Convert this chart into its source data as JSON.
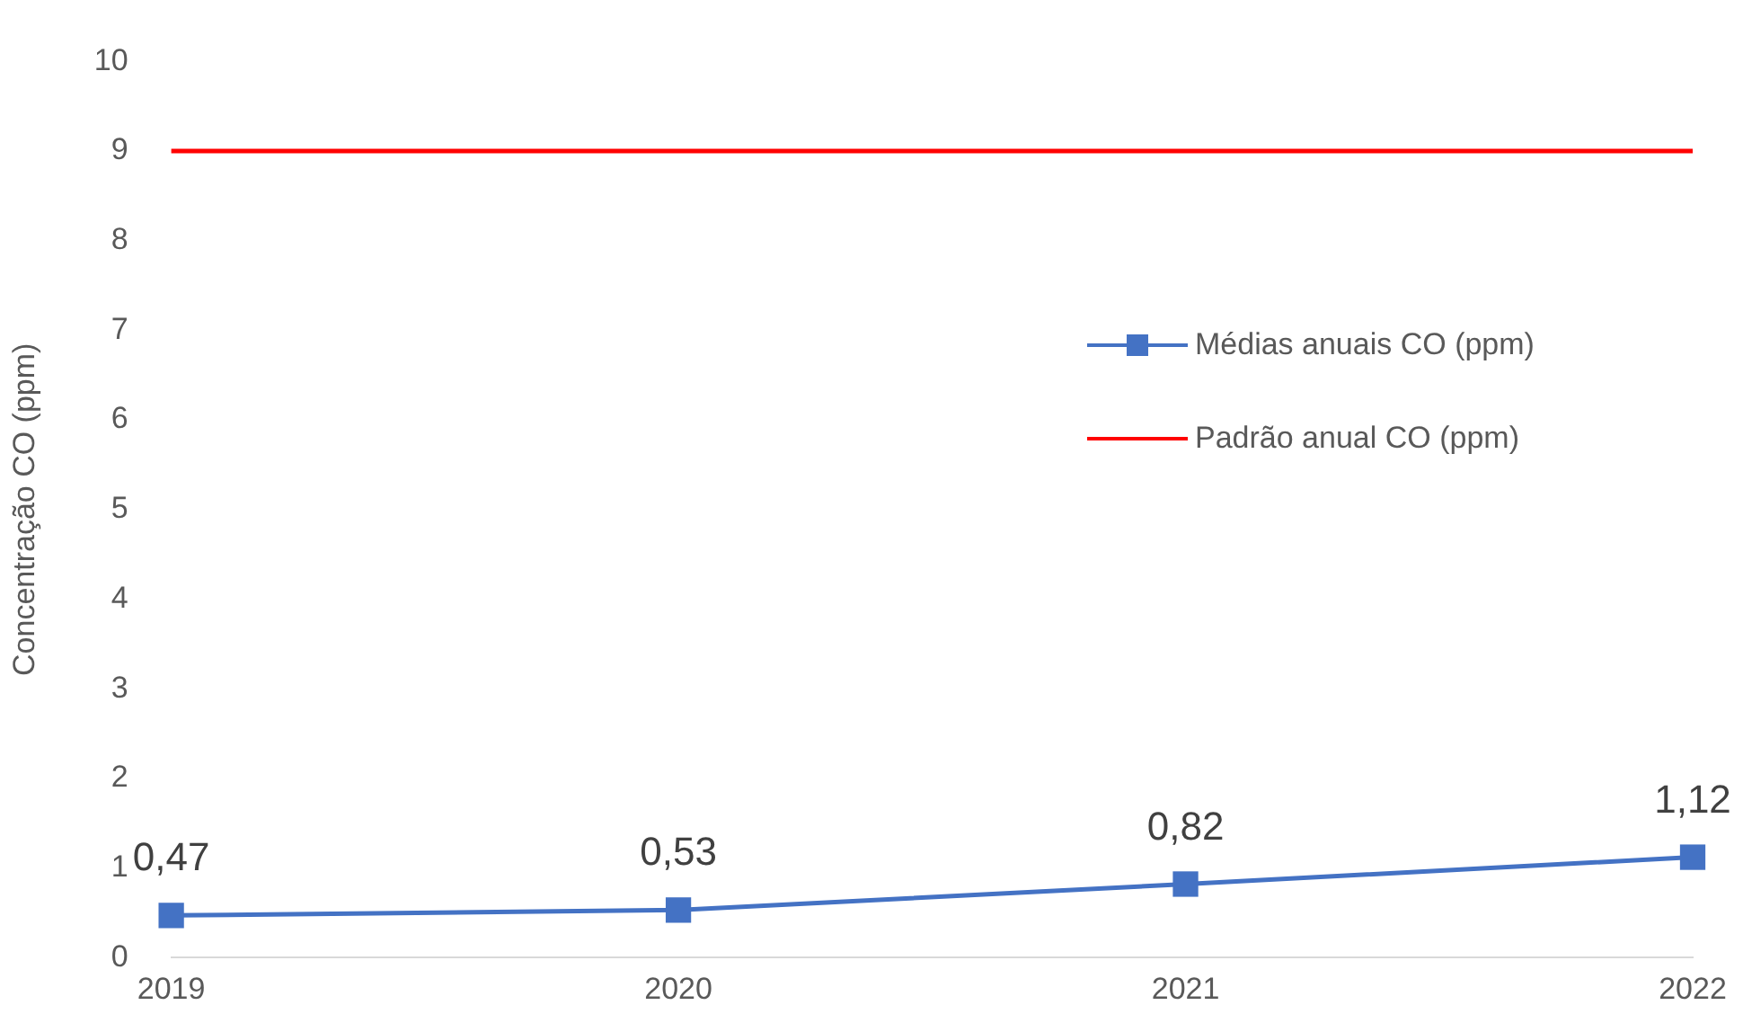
{
  "chart_data": {
    "type": "line",
    "ylabel": "Concentração CO (ppm)",
    "categories": [
      "2019",
      "2020",
      "2021",
      "2022"
    ],
    "series": [
      {
        "name": "Médias anuais CO (ppm)",
        "color": "#4472c4",
        "marker": "square",
        "values": [
          0.47,
          0.53,
          0.82,
          1.12
        ],
        "value_labels": [
          "0,47",
          "0,53",
          "0,82",
          "1,12"
        ]
      },
      {
        "name": "Padrão anual CO (ppm)",
        "color": "#ff0000",
        "marker": "none",
        "values": [
          9,
          9,
          9,
          9
        ]
      }
    ],
    "ylim": [
      0,
      10
    ],
    "yticks": [
      0,
      1,
      2,
      3,
      4,
      5,
      6,
      7,
      8,
      9,
      10
    ],
    "grid": false,
    "legend": "right",
    "line_style": "solid"
  }
}
